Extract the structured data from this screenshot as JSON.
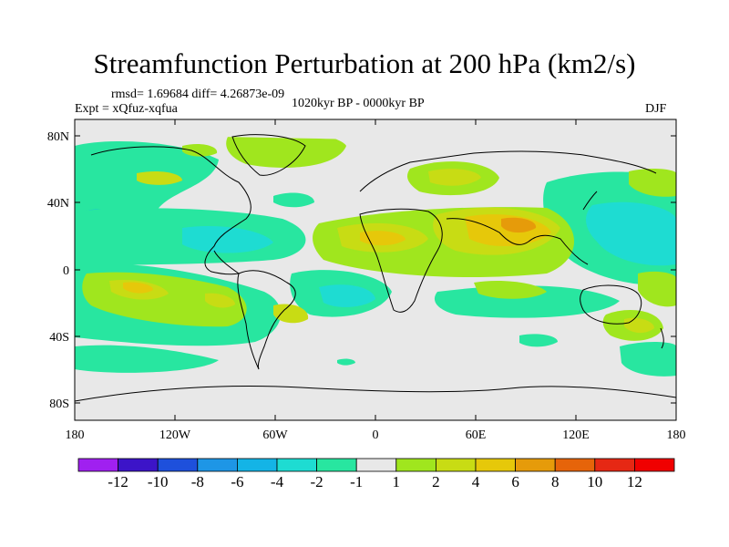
{
  "title": "Streamfunction Perturbation at 200 hPa (km2/s)",
  "stats": "rmsd= 1.69684 diff= 4.26873e-09",
  "experiment": "Expt = xQfuz-xqfua",
  "period": "1020kyr BP - 0000kyr BP",
  "season": "DJF",
  "axes": {
    "lon_ticks": [
      "180",
      "120W",
      "60W",
      "0",
      "60E",
      "120E",
      "180"
    ],
    "lat_ticks": [
      "80N",
      "40N",
      "0",
      "40S",
      "80S"
    ]
  },
  "colorbar": {
    "labels": [
      "-12",
      "-10",
      "-8",
      "-6",
      "-4",
      "-2",
      "-1",
      "1",
      "2",
      "4",
      "6",
      "8",
      "10",
      "12"
    ],
    "colors": [
      "#a020f0",
      "#3c14c8",
      "#1e50dc",
      "#1e96e6",
      "#14b4e6",
      "#1edcd2",
      "#28e6a0",
      "#e8e8e8",
      "#a0e61e",
      "#c8dc14",
      "#e6c80a",
      "#e69b0a",
      "#e6640a",
      "#e62814",
      "#f00000"
    ]
  },
  "colors": {
    "background": "#ffffff",
    "ocean_neutral": "#e8e8e8",
    "coast": "#000000"
  }
}
